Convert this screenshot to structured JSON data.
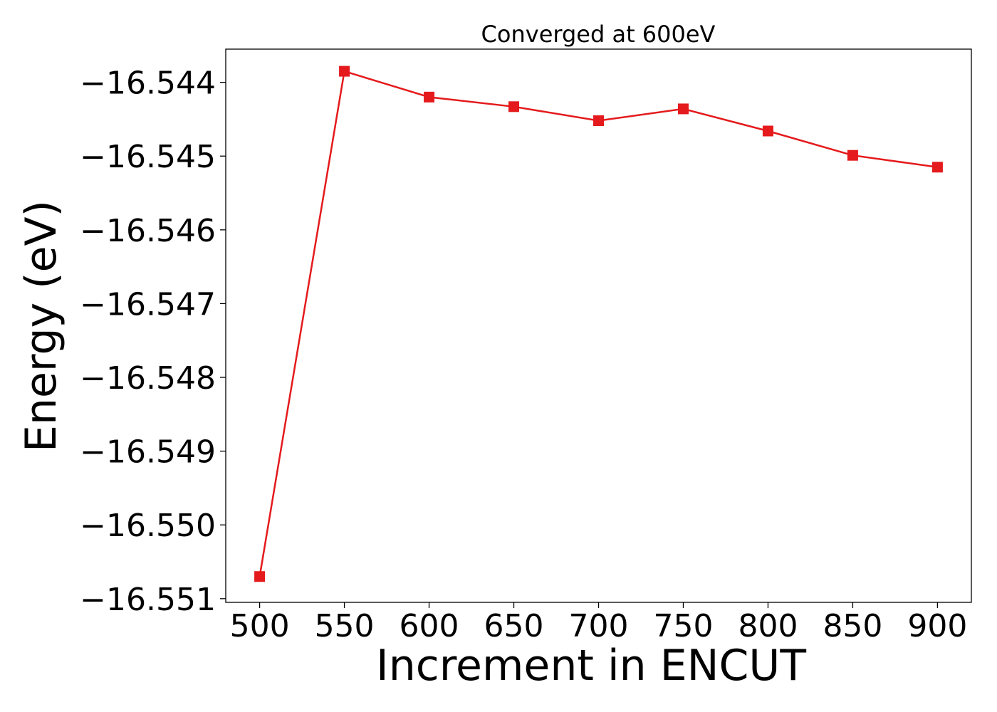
{
  "chart_data": {
    "type": "line",
    "title": "Converged at 600eV",
    "xlabel": "Increment in ENCUT",
    "ylabel": "Energy (eV)",
    "x": [
      500,
      550,
      600,
      650,
      700,
      750,
      800,
      850,
      900
    ],
    "series": [
      {
        "values": [
          -16.5507,
          -16.54385,
          -16.5442,
          -16.54433,
          -16.54452,
          -16.54436,
          -16.54466,
          -16.54499,
          -16.54515
        ],
        "color": "#e41a1c",
        "marker": "square"
      }
    ],
    "xticks": [
      "500",
      "550",
      "600",
      "650",
      "700",
      "750",
      "800",
      "850",
      "900"
    ],
    "yticks": [
      "−16.544",
      "−16.545",
      "−16.546",
      "−16.547",
      "−16.548",
      "−16.549",
      "−16.550",
      "−16.551"
    ],
    "xlim": [
      480,
      920
    ],
    "ylim": [
      -16.55105,
      -16.54355
    ],
    "grid": false,
    "legend": false
  }
}
